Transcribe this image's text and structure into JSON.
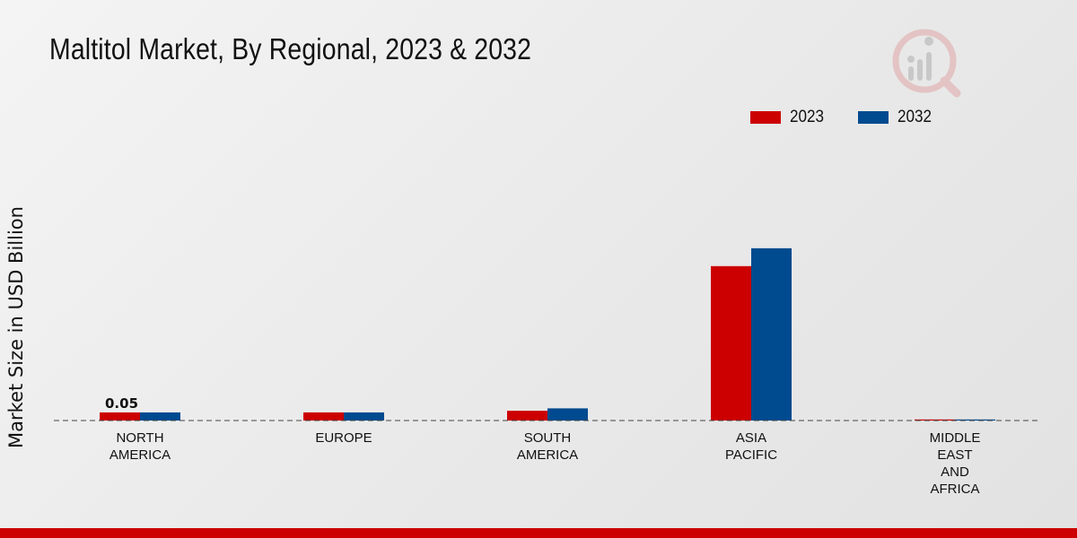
{
  "chart_data": {
    "type": "bar",
    "title": "Maltitol Market, By Regional, 2023 & 2032",
    "xlabel": "",
    "ylabel": "Market Size in USD Billion",
    "categories": [
      [
        "NORTH",
        "AMERICA"
      ],
      [
        "EUROPE"
      ],
      [
        "SOUTH",
        "AMERICA"
      ],
      [
        "ASIA",
        "PACIFIC"
      ],
      [
        "MIDDLE",
        "EAST",
        "AND",
        "AFRICA"
      ]
    ],
    "series": [
      {
        "name": "2023",
        "color": "#cc0000",
        "values": [
          0.05,
          0.05,
          0.06,
          0.95,
          0.005
        ]
      },
      {
        "name": "2032",
        "color": "#004a8f",
        "values": [
          0.05,
          0.05,
          0.075,
          1.06,
          0.006
        ]
      }
    ],
    "data_labels": [
      {
        "series": 0,
        "category": 0,
        "text": "0.05"
      }
    ],
    "ylim": [
      0,
      1.6
    ],
    "legend_position": "top-right",
    "grid": false
  }
}
